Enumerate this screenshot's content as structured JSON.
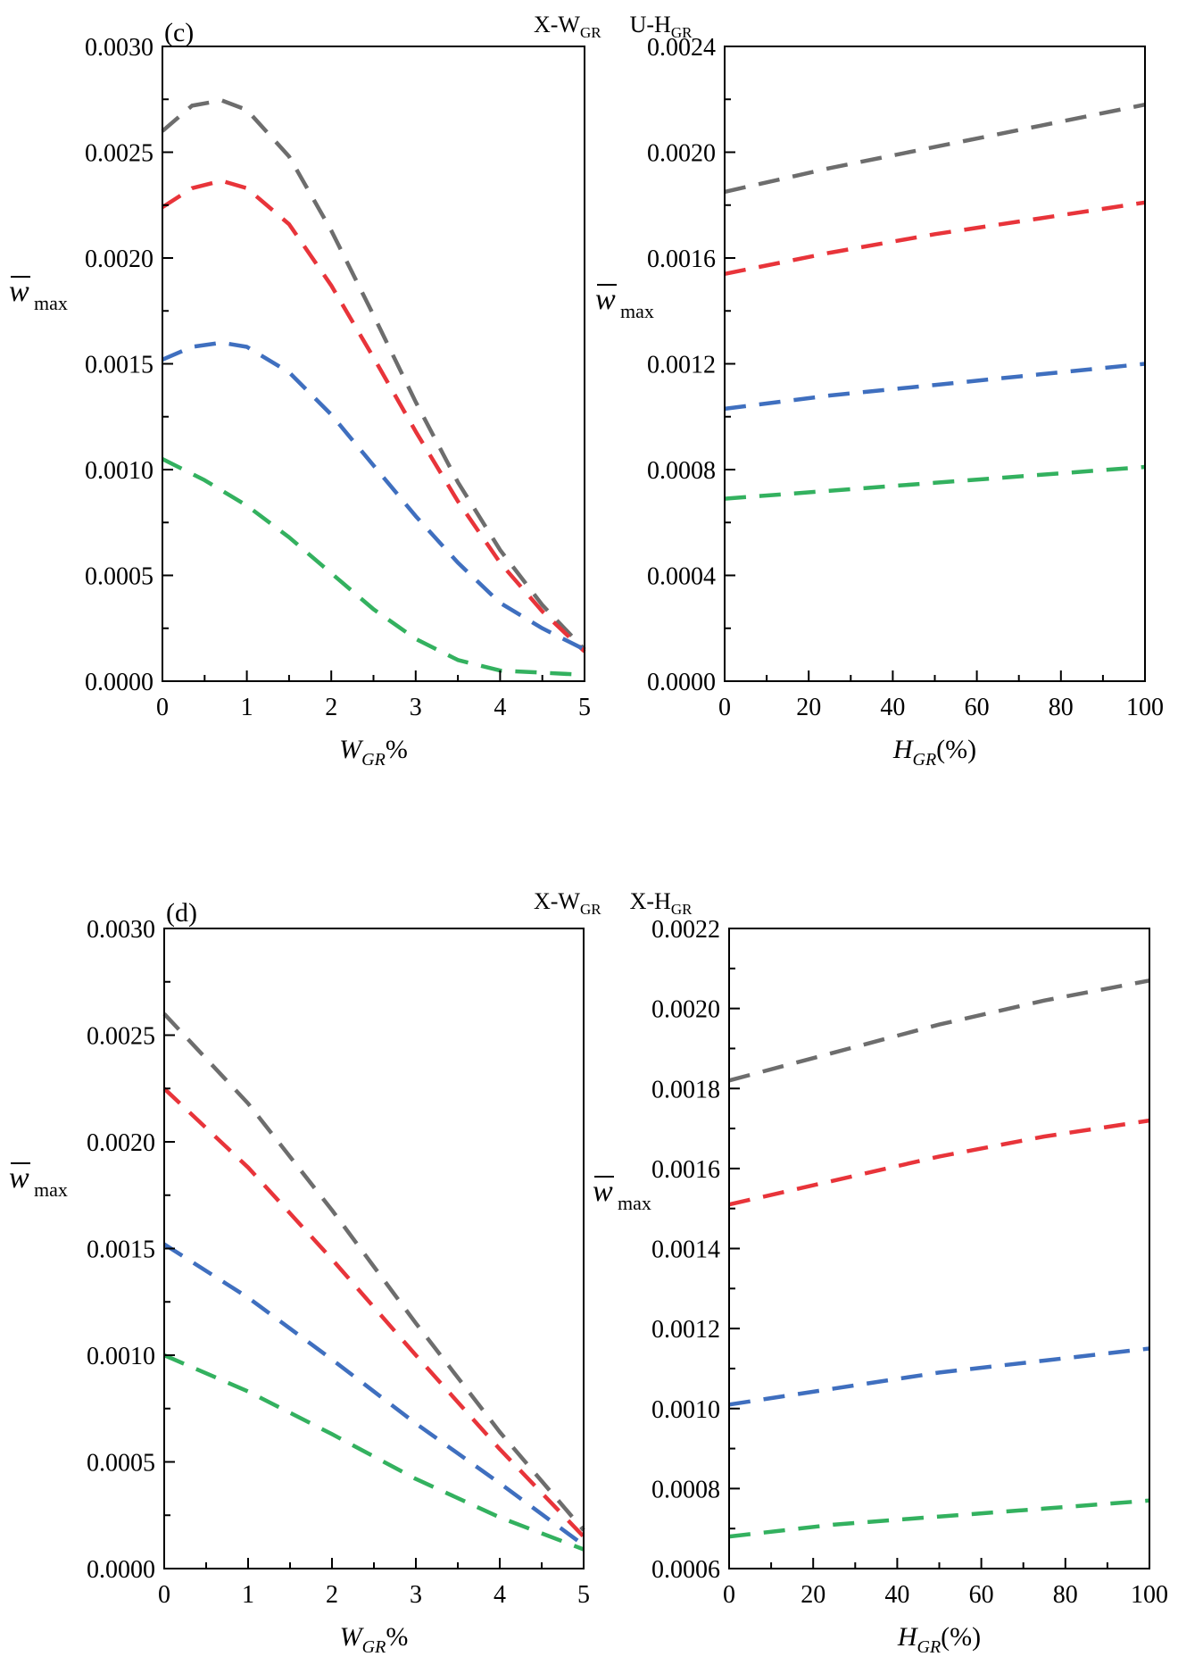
{
  "colors": {
    "gray": "#6d6d6d",
    "red": "#e8343a",
    "blue": "#3f6fbf",
    "green": "#33b15f"
  },
  "chart_data": [
    {
      "id": "c-left",
      "type": "line",
      "panel_label": "(c)",
      "header": {
        "parts": [
          "X-W",
          "GR",
          "U-H",
          "GR"
        ]
      },
      "ylabel": {
        "symbol": "w",
        "sub": "max"
      },
      "xlabel": {
        "main": "W",
        "sub": "GR",
        "suffix": "%"
      },
      "xlim": [
        0,
        5
      ],
      "ylim": [
        0,
        0.003
      ],
      "xticks": [
        0,
        1,
        2,
        3,
        4,
        5
      ],
      "xtick_labels": [
        "0",
        "1",
        "2",
        "3",
        "4",
        "5"
      ],
      "yticks": [
        0,
        0.0005,
        0.001,
        0.0015,
        0.002,
        0.0025,
        0.003
      ],
      "ytick_labels": [
        "0.0000",
        "0.0005",
        "0.0010",
        "0.0015",
        "0.0020",
        "0.0025",
        "0.0030"
      ],
      "series": [
        {
          "color": "gray",
          "x": [
            0,
            0.35,
            0.7,
            1.0,
            1.5,
            2.0,
            2.5,
            3.0,
            3.5,
            4.0,
            4.5,
            5.0
          ],
          "y": [
            0.0026,
            0.00272,
            0.002745,
            0.0027,
            0.00248,
            0.00213,
            0.00173,
            0.00132,
            0.00094,
            0.00062,
            0.00036,
            0.00015
          ]
        },
        {
          "color": "red",
          "x": [
            0,
            0.35,
            0.7,
            1.0,
            1.5,
            2.0,
            2.5,
            3.0,
            3.5,
            4.0,
            4.5,
            5.0
          ],
          "y": [
            0.00224,
            0.00233,
            0.002365,
            0.00233,
            0.00216,
            0.00187,
            0.00153,
            0.00118,
            0.00085,
            0.00056,
            0.00033,
            0.00014
          ]
        },
        {
          "color": "blue",
          "x": [
            0,
            0.35,
            0.7,
            1.0,
            1.5,
            2.0,
            2.5,
            3.0,
            3.5,
            4.0,
            4.5,
            5.0
          ],
          "y": [
            0.00152,
            0.00158,
            0.0016,
            0.00158,
            0.00146,
            0.00126,
            0.00102,
            0.00078,
            0.00056,
            0.00037,
            0.00025,
            0.00015
          ]
        },
        {
          "color": "green",
          "x": [
            0,
            0.5,
            1.0,
            1.5,
            2.0,
            2.5,
            3.0,
            3.5,
            4.0,
            4.5,
            5.0
          ],
          "y": [
            0.00105,
            0.00095,
            0.00083,
            0.00068,
            0.00051,
            0.00034,
            0.0002,
            0.0001,
            5e-05,
            4e-05,
            3e-05
          ]
        }
      ]
    },
    {
      "id": "c-right",
      "type": "line",
      "ylabel": {
        "symbol": "w",
        "sub": "max"
      },
      "xlabel": {
        "main": "H",
        "sub": "GR",
        "suffix": "(%)"
      },
      "xlim": [
        0,
        100
      ],
      "ylim": [
        0,
        0.0024
      ],
      "xticks": [
        0,
        20,
        40,
        60,
        80,
        100
      ],
      "xtick_labels": [
        "0",
        "20",
        "40",
        "60",
        "80",
        "100"
      ],
      "yticks": [
        0,
        0.0004,
        0.0008,
        0.0012,
        0.0016,
        0.002,
        0.0024
      ],
      "ytick_labels": [
        "0.0000",
        "0.0004",
        "0.0008",
        "0.0012",
        "0.0016",
        "0.0020",
        "0.0024"
      ],
      "series": [
        {
          "color": "gray",
          "x": [
            0,
            25,
            50,
            75,
            100
          ],
          "y": [
            0.00185,
            0.00194,
            0.00202,
            0.0021,
            0.00218
          ]
        },
        {
          "color": "red",
          "x": [
            0,
            25,
            50,
            75,
            100
          ],
          "y": [
            0.00154,
            0.00162,
            0.00169,
            0.00175,
            0.00181
          ]
        },
        {
          "color": "blue",
          "x": [
            0,
            25,
            50,
            75,
            100
          ],
          "y": [
            0.00103,
            0.00108,
            0.00112,
            0.00116,
            0.0012
          ]
        },
        {
          "color": "green",
          "x": [
            0,
            25,
            50,
            75,
            100
          ],
          "y": [
            0.00069,
            0.00072,
            0.00075,
            0.00078,
            0.00081
          ]
        }
      ]
    },
    {
      "id": "d-left",
      "type": "line",
      "panel_label": "(d)",
      "header": {
        "parts": [
          "X-W",
          "GR",
          "X-H",
          "GR"
        ]
      },
      "ylabel": {
        "symbol": "w",
        "sub": "max"
      },
      "xlabel": {
        "main": "W",
        "sub": "GR",
        "suffix": "%"
      },
      "xlim": [
        0,
        5
      ],
      "ylim": [
        0,
        0.003
      ],
      "xticks": [
        0,
        1,
        2,
        3,
        4,
        5
      ],
      "xtick_labels": [
        "0",
        "1",
        "2",
        "3",
        "4",
        "5"
      ],
      "yticks": [
        0,
        0.0005,
        0.001,
        0.0015,
        0.002,
        0.0025,
        0.003
      ],
      "ytick_labels": [
        "0.0000",
        "0.0005",
        "0.0010",
        "0.0015",
        "0.0020",
        "0.0025",
        "0.0030"
      ],
      "series": [
        {
          "color": "gray",
          "x": [
            0,
            1,
            2,
            3,
            4,
            5
          ],
          "y": [
            0.0026,
            0.00218,
            0.00168,
            0.00115,
            0.00064,
            0.00018
          ]
        },
        {
          "color": "red",
          "x": [
            0,
            1,
            2,
            3,
            4,
            5
          ],
          "y": [
            0.00225,
            0.00188,
            0.00145,
            0.001,
            0.00056,
            0.00015
          ]
        },
        {
          "color": "blue",
          "x": [
            0,
            1,
            2,
            3,
            4,
            5
          ],
          "y": [
            0.00152,
            0.00127,
            0.00098,
            0.00068,
            0.0004,
            0.00011
          ]
        },
        {
          "color": "green",
          "x": [
            0,
            1,
            2,
            3,
            4,
            5
          ],
          "y": [
            0.001,
            0.00083,
            0.00063,
            0.00042,
            0.00024,
            9e-05
          ]
        }
      ]
    },
    {
      "id": "d-right",
      "type": "line",
      "ylabel": {
        "symbol": "w",
        "sub": "max"
      },
      "xlabel": {
        "main": "H",
        "sub": "GR",
        "suffix": "(%)"
      },
      "xlim": [
        0,
        100
      ],
      "ylim": [
        0.0006,
        0.0022
      ],
      "xticks": [
        0,
        20,
        40,
        60,
        80,
        100
      ],
      "xtick_labels": [
        "0",
        "20",
        "40",
        "60",
        "80",
        "100"
      ],
      "yticks": [
        0.0006,
        0.0008,
        0.001,
        0.0012,
        0.0014,
        0.0016,
        0.0018,
        0.002,
        0.0022
      ],
      "ytick_labels": [
        "0.0006",
        "0.0008",
        "0.0010",
        "0.0012",
        "0.0014",
        "0.0016",
        "0.0018",
        "0.0020",
        "0.0022"
      ],
      "series": [
        {
          "color": "gray",
          "x": [
            0,
            25,
            50,
            75,
            100
          ],
          "y": [
            0.00182,
            0.00189,
            0.00196,
            0.00202,
            0.00207
          ]
        },
        {
          "color": "red",
          "x": [
            0,
            25,
            50,
            75,
            100
          ],
          "y": [
            0.00151,
            0.00157,
            0.00163,
            0.00168,
            0.00172
          ]
        },
        {
          "color": "blue",
          "x": [
            0,
            25,
            50,
            75,
            100
          ],
          "y": [
            0.00101,
            0.00105,
            0.00109,
            0.00112,
            0.00115
          ]
        },
        {
          "color": "green",
          "x": [
            0,
            25,
            50,
            75,
            100
          ],
          "y": [
            0.00068,
            0.00071,
            0.00073,
            0.00075,
            0.00077
          ]
        }
      ]
    }
  ]
}
